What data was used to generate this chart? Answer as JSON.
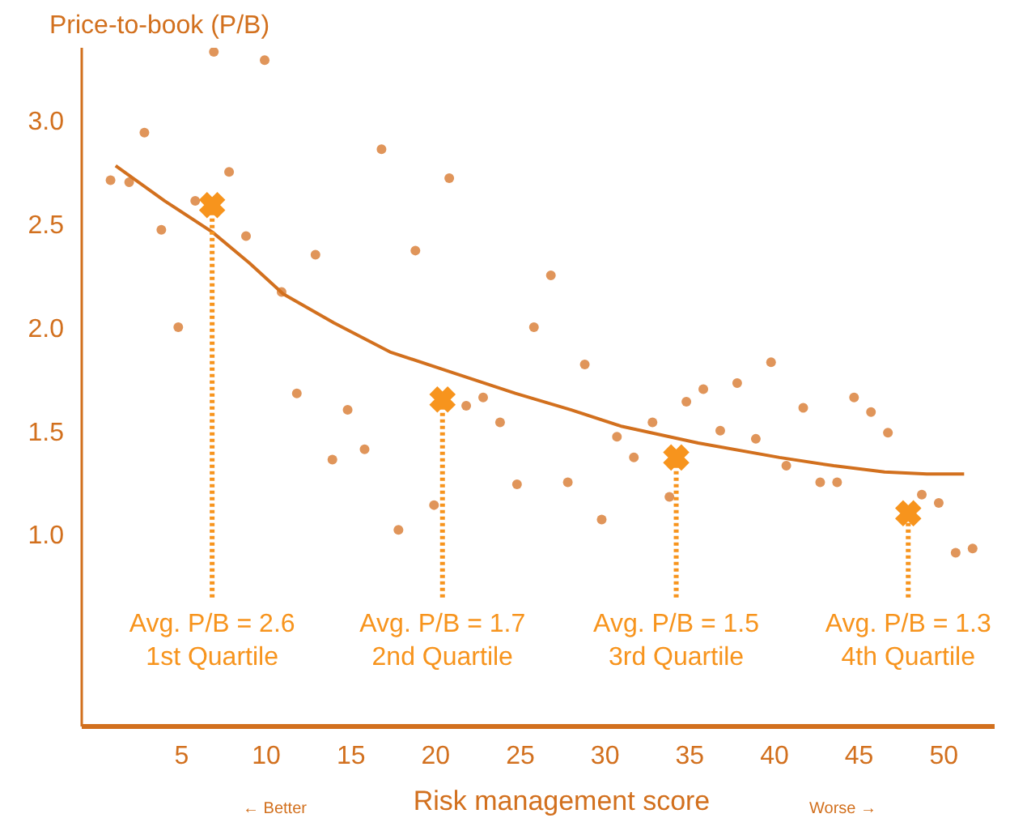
{
  "chart_data": {
    "type": "scatter",
    "ylabel": "Price-to-book (P/B)",
    "xlabel": "Risk management score",
    "xlim": [
      -0.9,
      53
    ],
    "ylim": [
      0.07,
      3.35
    ],
    "xticks": [
      5,
      10,
      15,
      20,
      25,
      30,
      35,
      40,
      45,
      50
    ],
    "yticks": [
      {
        "value": 1,
        "label": "1.0"
      },
      {
        "value": 1.5,
        "label": "1.5"
      },
      {
        "value": 2,
        "label": "2.0"
      },
      {
        "value": 2.5,
        "label": "2.5"
      },
      {
        "value": 3,
        "label": "3.0"
      }
    ],
    "grid": false,
    "legend": false,
    "series": [
      {
        "marker": "circle",
        "color": "#e0955a",
        "x": [
          0.8,
          1.9,
          2.8,
          3.8,
          4.8,
          5.8,
          6.9,
          7.8,
          8.8,
          9.9,
          10.9,
          11.8,
          12.9,
          13.9,
          14.8,
          15.8,
          16.8,
          17.8,
          18.8,
          19.9,
          20.8,
          21.8,
          22.8,
          23.8,
          24.8,
          25.8,
          26.8,
          27.8,
          28.8,
          29.8,
          30.7,
          31.7,
          32.8,
          33.8,
          34.8,
          35.8,
          36.8,
          37.8,
          38.9,
          39.8,
          40.7,
          41.7,
          42.7,
          43.7,
          44.7,
          45.7,
          46.7,
          48.7,
          49.7,
          50.7,
          51.7
        ],
        "values": [
          2.71,
          2.7,
          2.94,
          2.47,
          2.0,
          2.61,
          3.33,
          2.75,
          2.44,
          3.29,
          2.17,
          1.68,
          2.35,
          1.36,
          1.6,
          1.41,
          2.86,
          1.02,
          2.37,
          1.14,
          2.72,
          1.62,
          1.66,
          1.54,
          1.24,
          2.0,
          2.25,
          1.25,
          1.82,
          1.07,
          1.47,
          1.37,
          1.54,
          1.18,
          1.64,
          1.7,
          1.5,
          1.73,
          1.46,
          1.83,
          1.33,
          1.61,
          1.25,
          1.25,
          1.66,
          1.59,
          1.49,
          1.19,
          1.15,
          0.91,
          0.93
        ]
      },
      {
        "type": "line",
        "color": "#d2701e",
        "marker": "none",
        "line_style": "solid",
        "x": [
          1.1,
          4.0,
          6.8,
          9.0,
          11.0,
          14.0,
          17.3,
          21.0,
          24.7,
          28.0,
          31.0,
          35.5,
          40.3,
          43.5,
          46.5,
          49.0,
          51.2
        ],
        "values": [
          2.78,
          2.61,
          2.46,
          2.31,
          2.16,
          2.02,
          1.88,
          1.78,
          1.68,
          1.6,
          1.52,
          1.44,
          1.37,
          1.33,
          1.3,
          1.29,
          1.29
        ]
      },
      {
        "type": "lollipop",
        "color": "#f7941d",
        "marker": "cross",
        "line_style": "dotted",
        "x": [
          6.8,
          20.4,
          34.2,
          47.9
        ],
        "values": [
          2.59,
          1.65,
          1.37,
          1.1
        ]
      }
    ],
    "annotations": [
      {
        "text": "Avg. P/B = 2.6\n1st Quartile",
        "x": 6.8
      },
      {
        "text": "Avg. P/B = 1.7\n2nd Quartile",
        "x": 20.4
      },
      {
        "text": "Avg. P/B = 1.5\n3rd Quartile",
        "x": 34.2
      },
      {
        "text": "Avg. P/B = 1.3\n4th Quartile",
        "x": 47.9
      },
      "← Better",
      "Worse →"
    ]
  }
}
